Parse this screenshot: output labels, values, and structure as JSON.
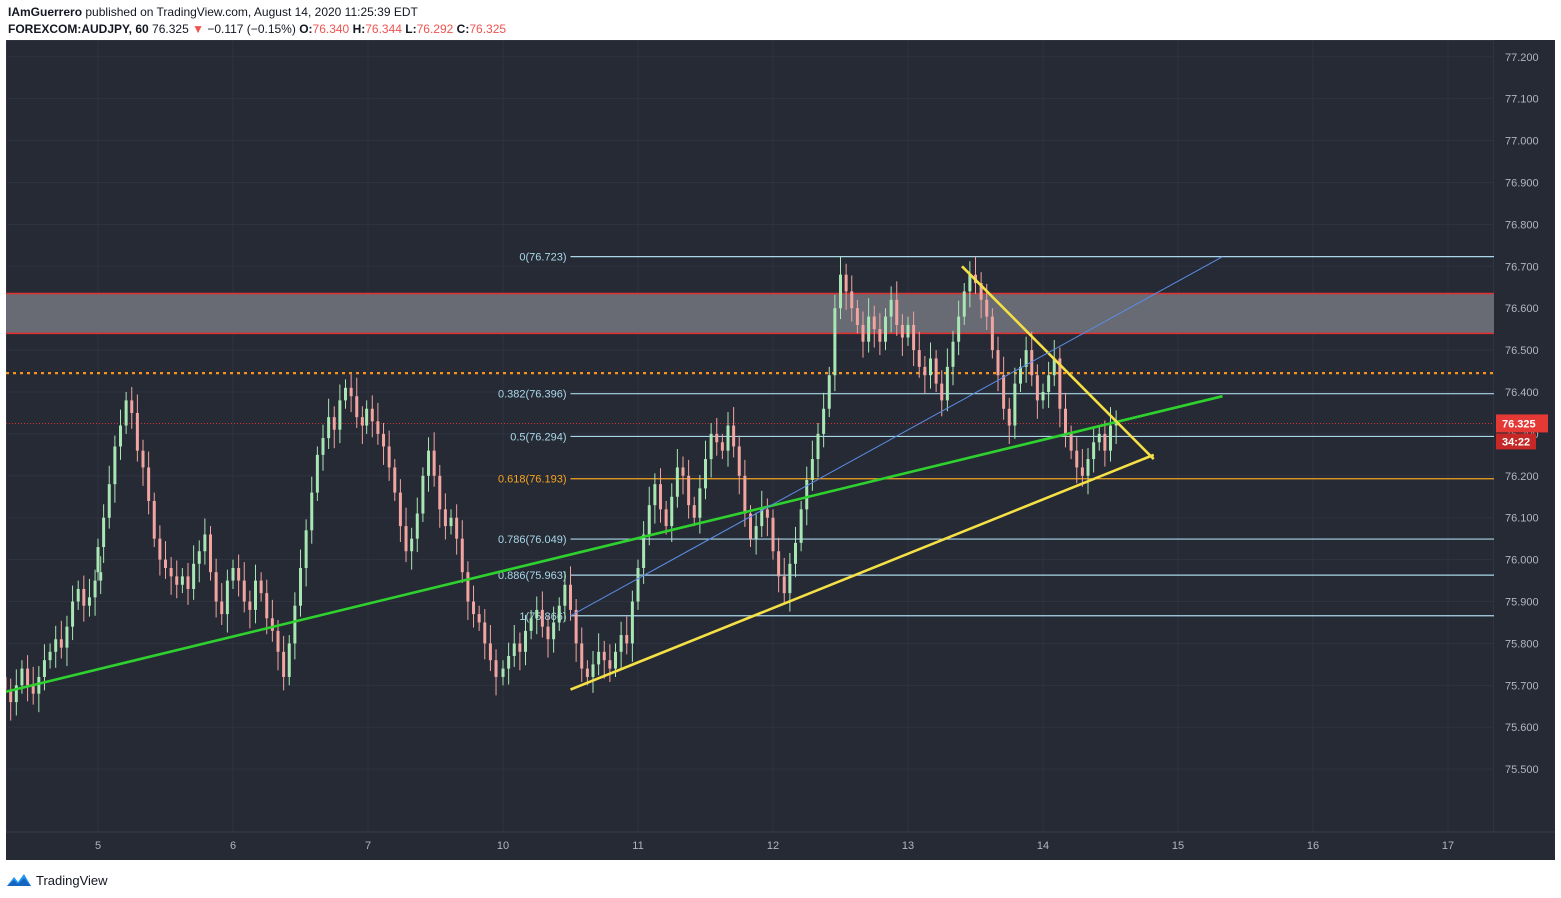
{
  "header": {
    "author": "IAmGuerrero",
    "published": "published on TradingView.com, August 14, 2020 11:25:39 EDT",
    "symbol": "FOREXCOM:AUDJPY, 60",
    "last": "76.325",
    "change_arrow": "▼",
    "change": "−0.117 (−0.15%)",
    "open_label": "O:",
    "open": "76.340",
    "high_label": "H:",
    "high": "76.344",
    "low_label": "L:",
    "low": "76.292",
    "close_label": "C:",
    "close": "76.325"
  },
  "footer": {
    "brand": "TradingView",
    "logo_icon": "tradingview-logo-icon"
  },
  "colors": {
    "background": "#262a35",
    "grid": "#2e3340",
    "axis_text": "#b2b5be",
    "up": "#a8e6b4",
    "down": "#f2a5a0",
    "fib": "#a9d7e8",
    "fib_618": "#f7a41d",
    "green_trend": "#2ed12e",
    "yellow_trend": "#f5e145",
    "zone_fill": "#6b6e78",
    "zone_border": "#e03030",
    "dotted": "#f7931a",
    "price_tag": "#e53935"
  },
  "chart_data": {
    "type": "candlestick",
    "x_axis": {
      "ticks": [
        "5",
        "6",
        "7",
        "10",
        "11",
        "12",
        "13",
        "14",
        "15",
        "16",
        "17"
      ]
    },
    "y_axis": {
      "range": [
        75.35,
        77.24
      ],
      "ticks": [
        "77.200",
        "77.100",
        "77.000",
        "76.900",
        "76.800",
        "76.700",
        "76.600",
        "76.500",
        "76.400",
        "76.300",
        "76.200",
        "76.100",
        "76.000",
        "75.900",
        "75.800",
        "75.700",
        "75.600",
        "75.500"
      ]
    },
    "price_label": "76.325",
    "countdown": "34:22",
    "fibonacci": [
      {
        "label": "0(76.723)",
        "level": 0,
        "price": 76.723
      },
      {
        "label": "0.382(76.396)",
        "level": 0.382,
        "price": 76.396
      },
      {
        "label": "0.5(76.294)",
        "level": 0.5,
        "price": 76.294
      },
      {
        "label": "0.618(76.193)",
        "level": 0.618,
        "price": 76.193
      },
      {
        "label": "0.786(76.049)",
        "level": 0.786,
        "price": 76.049
      },
      {
        "label": "0.886(75.963)",
        "level": 0.886,
        "price": 75.963
      },
      {
        "label": "1(75.866)",
        "level": 1,
        "price": 75.866
      }
    ],
    "resistance_zone": [
      76.54,
      76.635
    ],
    "dotted_level": 76.445,
    "trendlines": [
      {
        "name": "green-trend-line",
        "from": [
          4.0,
          75.66
        ],
        "to": [
          15.33,
          76.39
        ]
      },
      {
        "name": "yellow-support-line",
        "from": [
          10.5,
          75.69
        ],
        "to": [
          14.82,
          76.25
        ]
      },
      {
        "name": "yellow-resistance-line",
        "from": [
          13.4,
          76.7
        ],
        "to": [
          14.82,
          76.24
        ]
      },
      {
        "name": "blue-fib-diagonal",
        "from": [
          10.5,
          75.866
        ],
        "to": [
          15.33,
          76.723
        ]
      }
    ],
    "candles_hourly": [
      {
        "day": "4",
        "start": 4.02,
        "closes": [
          75.64,
          75.59,
          75.55,
          75.6,
          75.66,
          75.7,
          75.72,
          75.69,
          75.66,
          75.7,
          75.74,
          75.7,
          75.68,
          75.72,
          75.76,
          75.78,
          75.81,
          75.79,
          75.84,
          75.9,
          75.93,
          75.89,
          75.91,
          75.95,
          75.97
        ]
      },
      {
        "day": "5",
        "start": 5.0,
        "closes": [
          76.03,
          76.1,
          76.18,
          76.27,
          76.32,
          76.38,
          76.35,
          76.26,
          76.22,
          76.14,
          76.05,
          76.0,
          75.98,
          75.96,
          75.94,
          75.96,
          75.93,
          75.99,
          76.02,
          76.06,
          75.97,
          75.9,
          75.87,
          75.95
        ]
      },
      {
        "day": "6",
        "start": 6.0,
        "closes": [
          75.98,
          75.95,
          75.9,
          75.88,
          75.95,
          75.92,
          75.86,
          75.83,
          75.78,
          75.72,
          75.8,
          75.89,
          75.98,
          76.07,
          76.16,
          76.25,
          76.29,
          76.34,
          76.31,
          76.38,
          76.41,
          76.39,
          76.34,
          76.32
        ]
      },
      {
        "day": "7",
        "start": 6.99,
        "closes": [
          76.36,
          76.33,
          76.3,
          76.27,
          76.22,
          76.16,
          76.08,
          76.02,
          76.05,
          76.11,
          76.2,
          76.26,
          76.2,
          76.12,
          76.08,
          76.1,
          76.05,
          75.97,
          75.9,
          75.87,
          75.85,
          75.8,
          75.76,
          75.72
        ]
      },
      {
        "day": "10",
        "start": 10.0,
        "closes": [
          75.74,
          75.77,
          75.8,
          75.78,
          75.83,
          75.86,
          75.88,
          75.84,
          75.81,
          75.85,
          75.89,
          75.94,
          75.88,
          75.8,
          75.74,
          75.72,
          75.75,
          75.78,
          75.76,
          75.74,
          75.78,
          75.82,
          75.8,
          75.9
        ]
      },
      {
        "day": "11",
        "start": 11.0,
        "closes": [
          75.98,
          76.06,
          76.13,
          76.18,
          76.12,
          76.08,
          76.15,
          76.22,
          76.2,
          76.13,
          76.1,
          76.17,
          76.24,
          76.3,
          76.28,
          76.26,
          76.32,
          76.27,
          76.2,
          76.11,
          76.05,
          76.08,
          76.12,
          76.1
        ]
      },
      {
        "day": "12",
        "start": 12.0,
        "closes": [
          76.02,
          75.96,
          75.92,
          75.99,
          76.04,
          76.12,
          76.19,
          76.24,
          76.3,
          76.36,
          76.44,
          76.6,
          76.68,
          76.64,
          76.6,
          76.56,
          76.52,
          76.58,
          76.55,
          76.52,
          76.58,
          76.62,
          76.56,
          76.53
        ]
      },
      {
        "day": "13",
        "start": 13.0,
        "closes": [
          76.56,
          76.5,
          76.46,
          76.44,
          76.48,
          76.42,
          76.38,
          76.46,
          76.52,
          76.58,
          76.64,
          76.68,
          76.66,
          76.62,
          76.58,
          76.5,
          76.44,
          76.36,
          76.32,
          76.42,
          76.46,
          76.5,
          76.44,
          76.38
        ]
      },
      {
        "day": "14",
        "start": 14.0,
        "closes": [
          76.4,
          76.44,
          76.48,
          76.36,
          76.3,
          76.26,
          76.22,
          76.2,
          76.24,
          76.28,
          76.3,
          76.26,
          76.32,
          76.33
        ]
      }
    ]
  }
}
